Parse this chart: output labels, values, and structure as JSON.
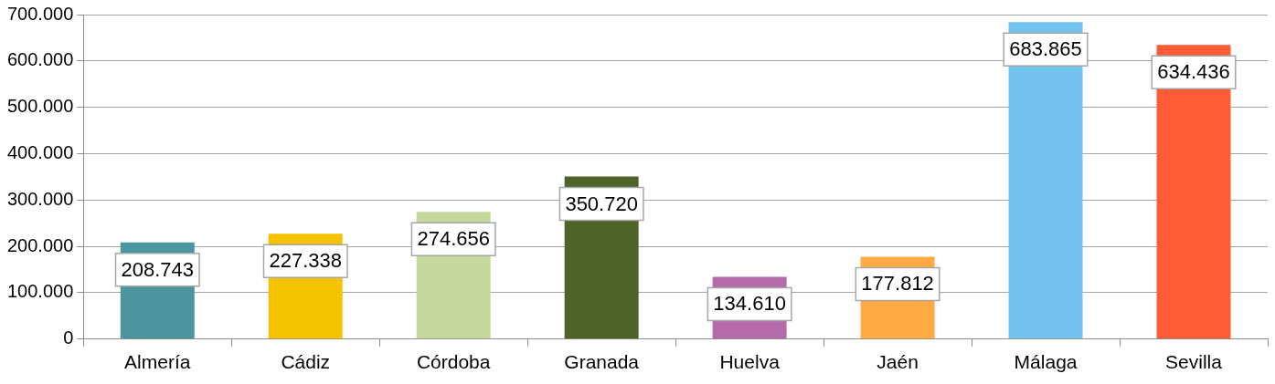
{
  "chart_data": {
    "type": "bar",
    "categories": [
      "Almería",
      "Cádiz",
      "Córdoba",
      "Granada",
      "Huelva",
      "Jaén",
      "Málaga",
      "Sevilla"
    ],
    "values": [
      208743,
      227338,
      274656,
      350720,
      134610,
      177812,
      683865,
      634436
    ],
    "value_labels": [
      "208.743",
      "227.338",
      "274.656",
      "350.720",
      "134.610",
      "177.812",
      "683.865",
      "634.436"
    ],
    "colors": [
      "#4a969c",
      "#f5c200",
      "#c6d89b",
      "#4f6228",
      "#b56aa9",
      "#ffaa45",
      "#72c3ee",
      "#ff5b36"
    ],
    "ylim": [
      0,
      700000
    ],
    "yticks": [
      0,
      {
        "value": 100000,
        "label": "100.000"
      },
      {
        "value": 200000,
        "label": "200.000"
      },
      {
        "value": 300000,
        "label": "300.000"
      },
      {
        "value": 400000,
        "label": "400.000"
      },
      {
        "value": 500000,
        "label": "500.000"
      },
      {
        "value": 600000,
        "label": "600.000"
      },
      {
        "value": 700000,
        "label": "700.000"
      }
    ],
    "grid": "y",
    "legend": false
  }
}
